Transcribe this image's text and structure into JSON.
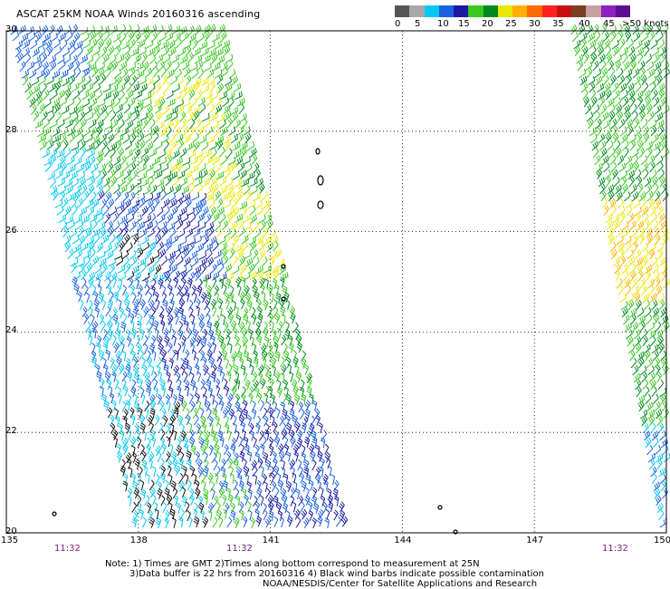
{
  "title": "ASCAT 25KM NOAA Winds 20160316 ascending",
  "colorbar": {
    "labels": [
      "0",
      "5",
      "10",
      "15",
      "20",
      "25",
      "30",
      "35",
      "40",
      "45",
      ">50 knots"
    ],
    "colors": [
      "#555555",
      "#a8a8a8",
      "#00c8f0",
      "#1a60e0",
      "#1a1aa0",
      "#38c820",
      "#008a1c",
      "#e8e800",
      "#ffb000",
      "#ff6a00",
      "#ff2020",
      "#c81010",
      "#7a4020",
      "#c8a0a0",
      "#9020c0",
      "#5a1090"
    ]
  },
  "map": {
    "lon_range": [
      135,
      150
    ],
    "lat_range": [
      20,
      30
    ],
    "x_ticks": [
      "135",
      "138",
      "141",
      "144",
      "147",
      "150"
    ],
    "y_ticks": [
      "30",
      "28",
      "26",
      "24",
      "22",
      "20"
    ],
    "swath_times": [
      "11:32",
      "11:32",
      "11:32"
    ],
    "gridlines": "dotted"
  },
  "notes": {
    "line1": "Note: 1) Times are GMT 2)Times along bottom correspond to measurement at 25N",
    "line2": "3)Data buffer is 22 hrs from 20160316 4) Black wind barbs indicate possible contamination",
    "line3": "NOAA/NESDIS/Center for Satellite Applications and Research"
  }
}
